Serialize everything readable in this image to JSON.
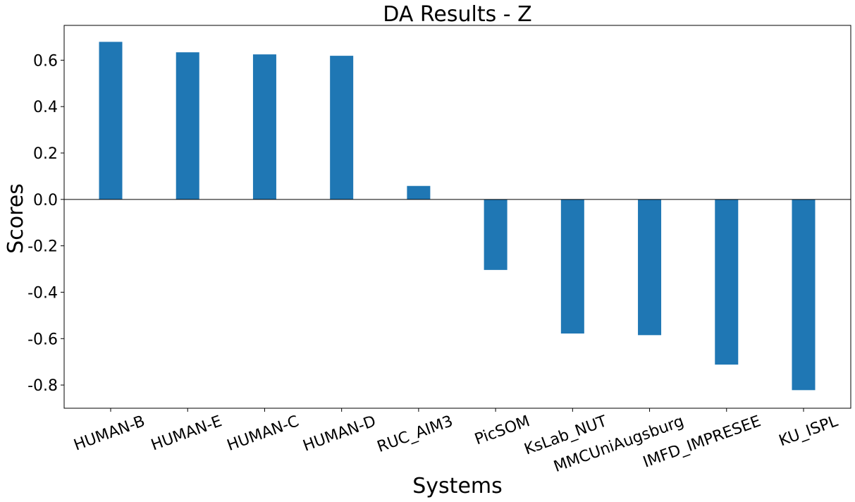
{
  "chart_data": {
    "type": "bar",
    "title": "DA Results - Z",
    "xlabel": "Systems",
    "ylabel": "Scores",
    "categories": [
      "HUMAN-B",
      "HUMAN-E",
      "HUMAN-C",
      "HUMAN-D",
      "RUC_AIM3",
      "PicSOM",
      "KsLab_NUT",
      "MMCUniAugsburg",
      "IMFD_IMPRESEE",
      "KU_ISPL"
    ],
    "values": [
      0.679,
      0.634,
      0.625,
      0.619,
      0.058,
      -0.304,
      -0.578,
      -0.585,
      -0.712,
      -0.822
    ],
    "ylim": [
      -0.9,
      0.75
    ],
    "yticks": [
      -0.8,
      -0.6,
      -0.4,
      -0.2,
      0.0,
      0.2,
      0.4,
      0.6
    ],
    "ytick_labels": [
      "-0.8",
      "-0.6",
      "-0.4",
      "-0.2",
      "0.0",
      "0.2",
      "0.4",
      "0.6"
    ],
    "grid": false,
    "zero_line": true,
    "bar_color": "#1f77b4"
  }
}
